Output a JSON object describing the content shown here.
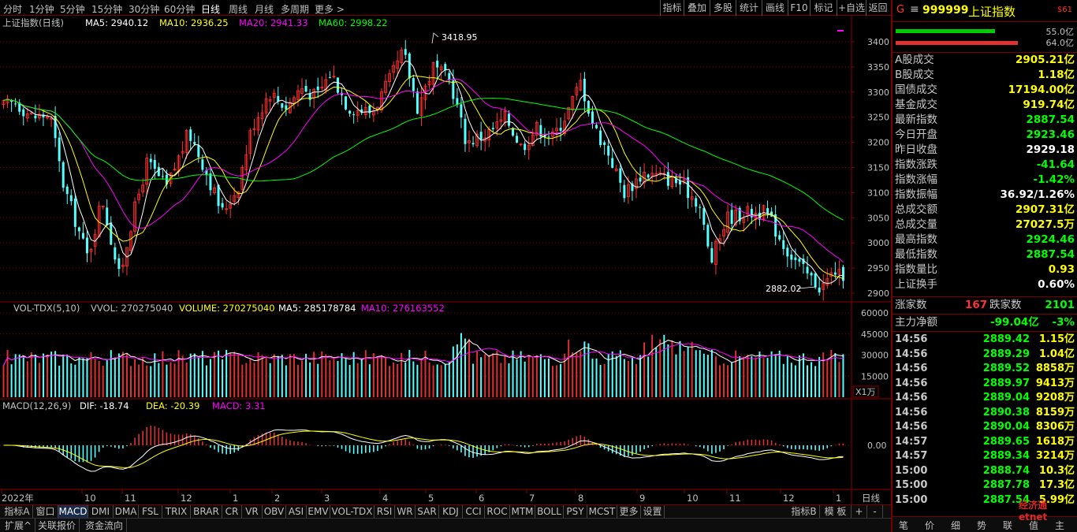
{
  "toolbar": {
    "timeframes": [
      "分时",
      "1分钟",
      "5分钟",
      "15分钟",
      "30分钟",
      "60分钟",
      "日线",
      "周线",
      "月线",
      "多周期",
      "更多 >"
    ],
    "active_timeframe": "日线",
    "right_buttons": [
      "指标",
      "叠加",
      "多股",
      "统计",
      "画线",
      "F10",
      "标记",
      "+自选",
      "返回"
    ]
  },
  "main_chart": {
    "title": "上证指数(日线)",
    "ma_labels": [
      {
        "text": "MA5: 2940.12",
        "color": "#ffffff"
      },
      {
        "text": "MA10: 2936.25",
        "color": "#ffff00"
      },
      {
        "text": "MA20: 2941.33",
        "color": "#ff00ff"
      },
      {
        "text": "MA60: 2998.22",
        "color": "#00ff00"
      }
    ],
    "high_label": "3418.95",
    "low_label": "2882.02",
    "y_ticks": [
      "3400",
      "3350",
      "3300",
      "3250",
      "3200",
      "3150",
      "3100",
      "3050",
      "3000",
      "2950",
      "2900"
    ]
  },
  "volume_chart": {
    "labels": [
      {
        "text": "VOL-TDX(5,10)",
        "color": "#c0c0c0"
      },
      {
        "text": "VVOL: 270275040",
        "color": "#c0c0c0"
      },
      {
        "text": "VOLUME: 270275040",
        "color": "#ffff00"
      },
      {
        "text": "MA5: 285178784",
        "color": "#ffffff"
      },
      {
        "text": "MA10: 276163552",
        "color": "#ff00ff"
      }
    ],
    "y_ticks": [
      "60000",
      "45000",
      "30000",
      "15000"
    ],
    "unit": "X1万"
  },
  "macd_chart": {
    "labels": [
      {
        "text": "MACD(12,26,9)",
        "color": "#c0c0c0"
      },
      {
        "text": "DIF: -18.74",
        "color": "#ffffff"
      },
      {
        "text": "DEA: -20.39",
        "color": "#ffff00"
      },
      {
        "text": "MACD: 3.31",
        "color": "#ff00ff"
      }
    ],
    "y_ticks": [
      "0.00"
    ]
  },
  "x_axis": {
    "labels": [
      "2022年",
      "10",
      "11",
      "12",
      "1",
      "2",
      "3",
      "4",
      "5",
      "6",
      "7",
      "8",
      "9",
      "10",
      "11",
      "12",
      "1"
    ],
    "period_label": "日线"
  },
  "right_panel": {
    "header": {
      "prefix": "G",
      "menu": "≡",
      "code": "999999",
      "name": "上证指数",
      "badge": "$61"
    },
    "bar_values": [
      "55.0亿",
      "64.0亿"
    ],
    "rows": [
      {
        "label": "A股成交",
        "value": "2905.21亿",
        "color": "#ffff00"
      },
      {
        "label": "B股成交",
        "value": "1.18亿",
        "color": "#ffff00"
      },
      {
        "label": "国债成交",
        "value": "17194.00亿",
        "color": "#ffff00"
      },
      {
        "label": "基金成交",
        "value": "919.74亿",
        "color": "#ffff00"
      },
      {
        "label": "最新指数",
        "value": "2887.54",
        "color": "#00ff00"
      },
      {
        "label": "今日开盘",
        "value": "2923.46",
        "color": "#00ff00"
      },
      {
        "label": "昨日收盘",
        "value": "2929.18",
        "color": "#ffffff"
      },
      {
        "label": "指数涨跌",
        "value": "-41.64",
        "color": "#00ff00"
      },
      {
        "label": "指数涨幅",
        "value": "-1.42%",
        "color": "#00ff00"
      },
      {
        "label": "指数振幅",
        "value": "36.92/1.26%",
        "color": "#ffffff"
      },
      {
        "label": "总成交额",
        "value": "2907.31亿",
        "color": "#ffff00"
      },
      {
        "label": "总成交量",
        "value": "27027.5万",
        "color": "#ffff00"
      },
      {
        "label": "最高指数",
        "value": "2924.46",
        "color": "#00ff00"
      },
      {
        "label": "最低指数",
        "value": "2887.54",
        "color": "#00ff00"
      },
      {
        "label": "指数量比",
        "value": "0.93",
        "color": "#ffff00"
      },
      {
        "label": "上证换手",
        "value": "0.60%",
        "color": "#ffffff"
      }
    ],
    "breadth": {
      "up_label": "涨家数",
      "up_value": "167",
      "down_label": "跌家数",
      "down_value": "2101"
    },
    "net_flow": {
      "label": "主力净额",
      "value": "-99.04亿",
      "pct": "-3%"
    },
    "ticks": [
      {
        "time": "14:56",
        "price": "2889.42",
        "vol": "1.15亿"
      },
      {
        "time": "14:56",
        "price": "2889.29",
        "vol": "1.04亿"
      },
      {
        "time": "14:56",
        "price": "2889.52",
        "vol": "8858万"
      },
      {
        "time": "14:56",
        "price": "2889.97",
        "vol": "9413万"
      },
      {
        "time": "14:56",
        "price": "2889.04",
        "vol": "9208万"
      },
      {
        "time": "14:56",
        "price": "2890.38",
        "vol": "8159万"
      },
      {
        "time": "14:56",
        "price": "2890.04",
        "vol": "8306万"
      },
      {
        "time": "14:57",
        "price": "2889.65",
        "vol": "1618万"
      },
      {
        "time": "14:57",
        "price": "2889.34",
        "vol": "3214万"
      },
      {
        "time": "15:00",
        "price": "2888.74",
        "vol": "10.3亿"
      },
      {
        "time": "15:00",
        "price": "2887.78",
        "vol": "17.3亿"
      },
      {
        "time": "15:00",
        "price": "2887.54",
        "vol": "5.99亿"
      }
    ],
    "bottom_tabs": [
      "笔",
      "价",
      "细",
      "势",
      "联",
      "值",
      "主"
    ],
    "watermark": "经济通 etnet"
  },
  "bottom_tabs": [
    "指标A",
    "窗口",
    "MACD",
    "DMI",
    "DMA",
    "FSL",
    "TRIX",
    "BRAR",
    "CR",
    "VR",
    "OBV",
    "ASI",
    "EMV",
    "VOL-TDX",
    "RSI",
    "WR",
    "SAR",
    "KDJ",
    "CCI",
    "ROC",
    "MTM",
    "BOLL",
    "PSY",
    "MCST",
    "更多",
    "设置"
  ],
  "active_tab": "MACD",
  "bottom_tabs_right": [
    "指标B",
    "模 板",
    "+",
    "-"
  ],
  "bottom_bar": [
    "扩展^",
    "关联报价",
    "资金流向"
  ],
  "colors": {
    "up": "#ff3232",
    "down": "#54ffff",
    "ma5": "#ffffff",
    "ma10": "#ffff00",
    "ma20": "#ff00ff",
    "ma60": "#00ff00",
    "grid": "#8b0000"
  }
}
